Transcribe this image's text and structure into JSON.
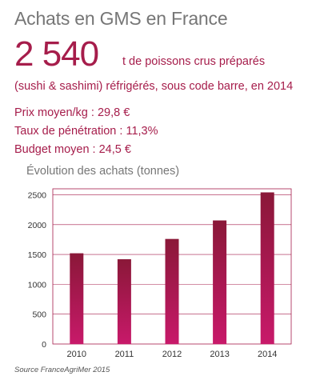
{
  "header": {
    "title": "Achats en GMS en France",
    "big_number": "2 540",
    "big_text_line1": "t de poissons crus préparés",
    "big_text_line2": "(sushi & sashimi) réfrigérés, sous code barre, en 2014"
  },
  "stats": {
    "prix": "Prix moyen/kg : 29,8 €",
    "taux": "Taux de pénétration : 11,3%",
    "budget": "Budget moyen : 24,5 €"
  },
  "colors": {
    "accent": "#a61d4b",
    "bar_top": "#8a1838",
    "bar_bottom": "#c8196a"
  },
  "source": "Source FranceAgriMer 2015",
  "chart_data": {
    "type": "bar",
    "title": "Évolution des achats (tonnes)",
    "categories": [
      "2010",
      "2011",
      "2012",
      "2013",
      "2014"
    ],
    "values": [
      1520,
      1420,
      1760,
      2070,
      2540
    ],
    "ylim": [
      0,
      2600
    ],
    "yticks": [
      0,
      500,
      1000,
      1500,
      2000,
      2500
    ],
    "grid": true,
    "xlabel": "",
    "ylabel": ""
  }
}
